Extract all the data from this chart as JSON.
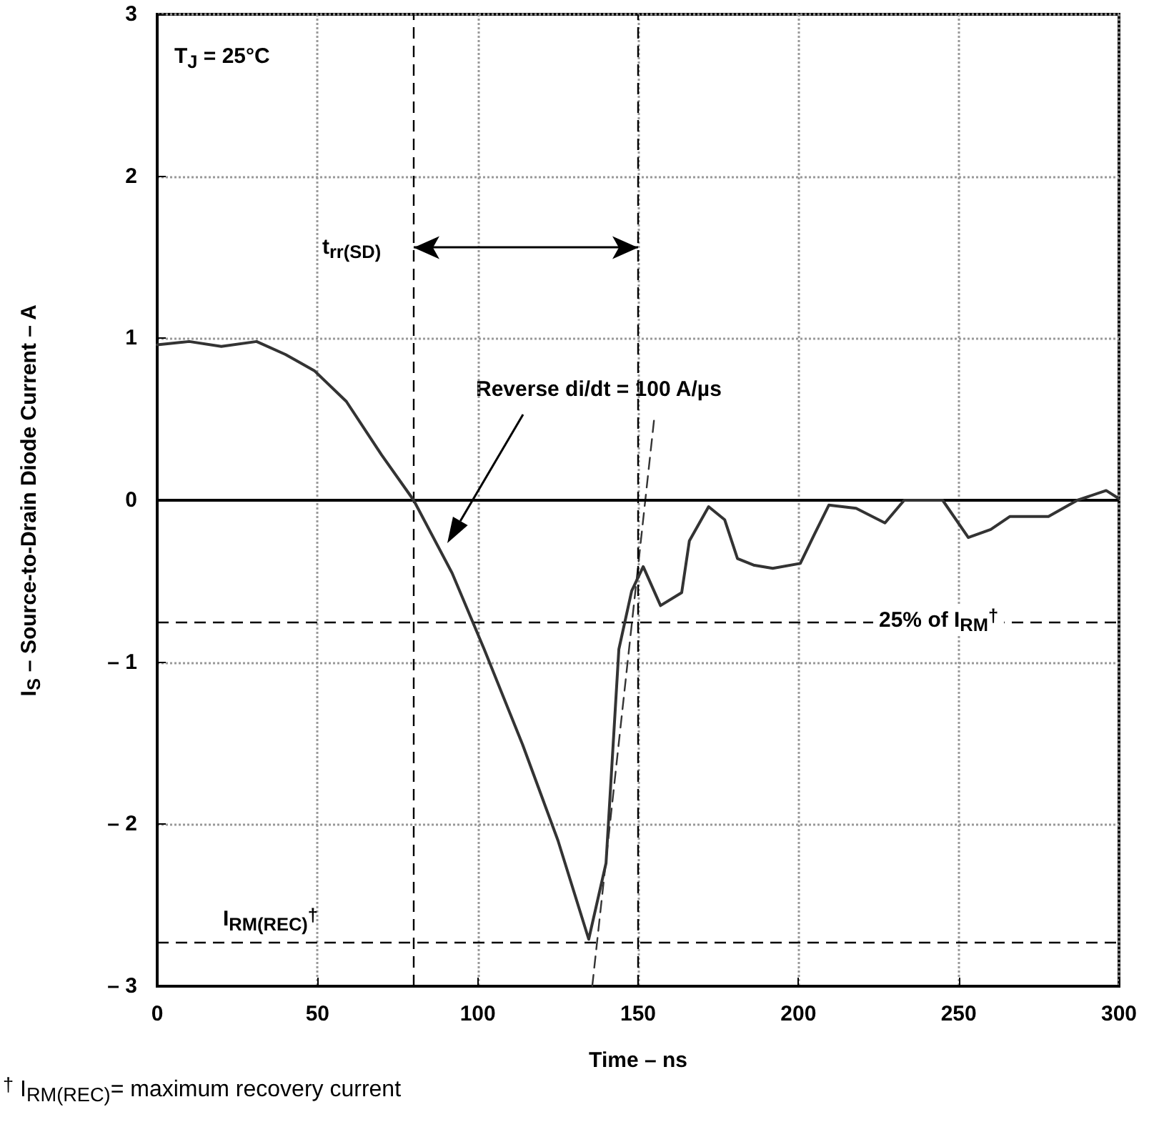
{
  "chart_data": {
    "type": "line",
    "xlabel": "Time – ns",
    "ylabel": "I$_{S}$ – Source-to-Drain Diode Current – A",
    "xlim": [
      0,
      300
    ],
    "xticks": [
      0,
      50,
      100,
      150,
      200,
      250,
      300
    ],
    "ylim": [
      -3,
      3
    ],
    "yticks": [
      {
        "value": -3,
        "label": "– 3"
      },
      {
        "value": -2,
        "label": "– 2"
      },
      {
        "value": -1,
        "label": "– 1"
      },
      0,
      1,
      2,
      3
    ],
    "grid": true,
    "marker": "none",
    "line_style": "solid",
    "series": [
      {
        "color": "#333333",
        "x": [
          0,
          10,
          20,
          31,
          40,
          49,
          59,
          70,
          80,
          92,
          102,
          114,
          125,
          134.6,
          140,
          144,
          148,
          151.6,
          157,
          163.6,
          166,
          172,
          177,
          181,
          186,
          192,
          200.6,
          205,
          209.5,
          218,
          227,
          233,
          245,
          253,
          260,
          266,
          278,
          287,
          296,
          300
        ],
        "values": [
          0.96,
          0.98,
          0.95,
          0.98,
          0.9,
          0.8,
          0.61,
          0.28,
          0.0,
          -0.45,
          -0.92,
          -1.51,
          -2.1,
          -2.71,
          -2.24,
          -0.92,
          -0.56,
          -0.41,
          -0.65,
          -0.57,
          -0.25,
          -0.04,
          -0.12,
          -0.36,
          -0.4,
          -0.42,
          -0.39,
          -0.21,
          -0.03,
          -0.05,
          -0.14,
          0.0,
          0.0,
          -0.23,
          -0.18,
          -0.1,
          -0.1,
          0.0,
          0.06,
          0.01
        ]
      },
      {
        "color": "#333333",
        "line_style": "dashed",
        "x": [
          135.7,
          155
        ],
        "values": [
          -3,
          0.5
        ]
      }
    ],
    "ref_lines": [
      {
        "axis": "y",
        "value": 0,
        "color": "#000000",
        "line_style": "solid"
      },
      {
        "axis": "x",
        "value": 80,
        "color": "#000000",
        "line_style": "dashed"
      },
      {
        "axis": "x",
        "value": 150,
        "color": "#000000",
        "line_style": "dashed"
      },
      {
        "axis": "y",
        "value": -2.73,
        "label": "I$_{RM(REC)}$$^{†}$",
        "color": "#000000",
        "line_style": "dashed"
      },
      {
        "axis": "y",
        "value": -0.75,
        "label": "25% of I$_{RM}$$^{†}$",
        "color": "#000000",
        "line_style": "dashed"
      }
    ],
    "annotations": [
      "T$_{J}$ = 25°C",
      {
        "text": "t$_{rr(SD)}$",
        "x": 80,
        "y": 1.56
      },
      "Reverse di/dt = 100 A/µs",
      "$^{†}$ I$_{RM(REC)}$= maximum recovery current"
    ]
  }
}
